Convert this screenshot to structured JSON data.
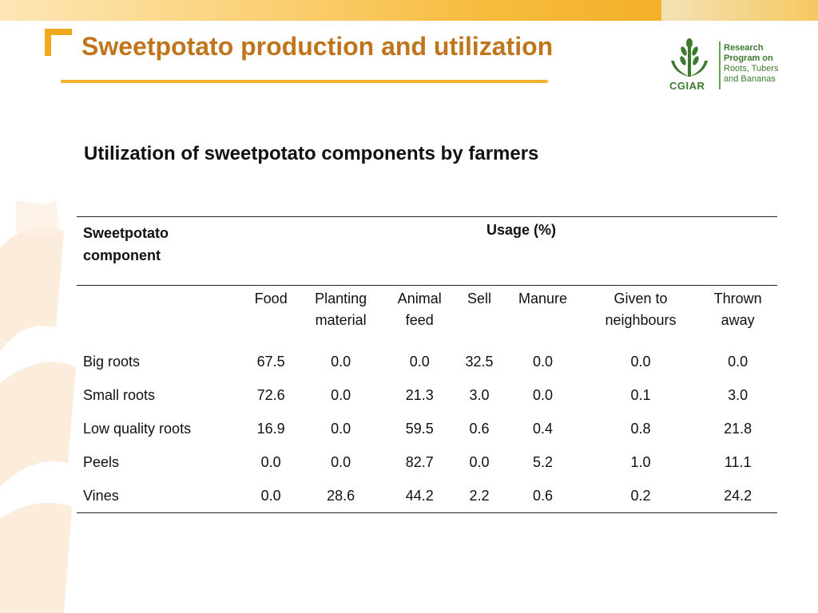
{
  "header": {
    "title": "Sweetpotato production and utilization"
  },
  "logo": {
    "brand": "CGIAR",
    "program_lines": [
      "Research",
      "Program on",
      "Roots, Tubers",
      "and Bananas"
    ]
  },
  "subtitle": "Utilization of sweetpotato components by farmers",
  "table": {
    "row_header_line1": "Sweetpotato",
    "row_header_line2": "component",
    "group_header": "Usage (%)",
    "columns": [
      {
        "line1": "Food",
        "line2": ""
      },
      {
        "line1": "Planting",
        "line2": "material"
      },
      {
        "line1": "Animal",
        "line2": "feed"
      },
      {
        "line1": "Sell",
        "line2": ""
      },
      {
        "line1": "Manure",
        "line2": ""
      },
      {
        "line1": "Given to",
        "line2": "neighbours"
      },
      {
        "line1": "Thrown",
        "line2": "away"
      }
    ],
    "rows": [
      {
        "label": "Big roots",
        "values": [
          "67.5",
          "0.0",
          "0.0",
          "32.5",
          "0.0",
          "0.0",
          "0.0"
        ]
      },
      {
        "label": "Small roots",
        "values": [
          "72.6",
          "0.0",
          "21.3",
          "3.0",
          "0.0",
          "0.1",
          "3.0"
        ]
      },
      {
        "label": "Low quality roots",
        "values": [
          "16.9",
          "0.0",
          "59.5",
          "0.6",
          "0.4",
          "0.8",
          "21.8"
        ]
      },
      {
        "label": "Peels",
        "values": [
          "0.0",
          "0.0",
          "82.7",
          "0.0",
          "5.2",
          "1.0",
          "11.1"
        ]
      },
      {
        "label": "Vines",
        "values": [
          "0.0",
          "28.6",
          "44.2",
          "2.2",
          "0.6",
          "0.2",
          "24.2"
        ]
      }
    ]
  },
  "colors": {
    "title": "#c0741b",
    "accent": "#f2a81d",
    "logo_green": "#3c7a2e"
  }
}
